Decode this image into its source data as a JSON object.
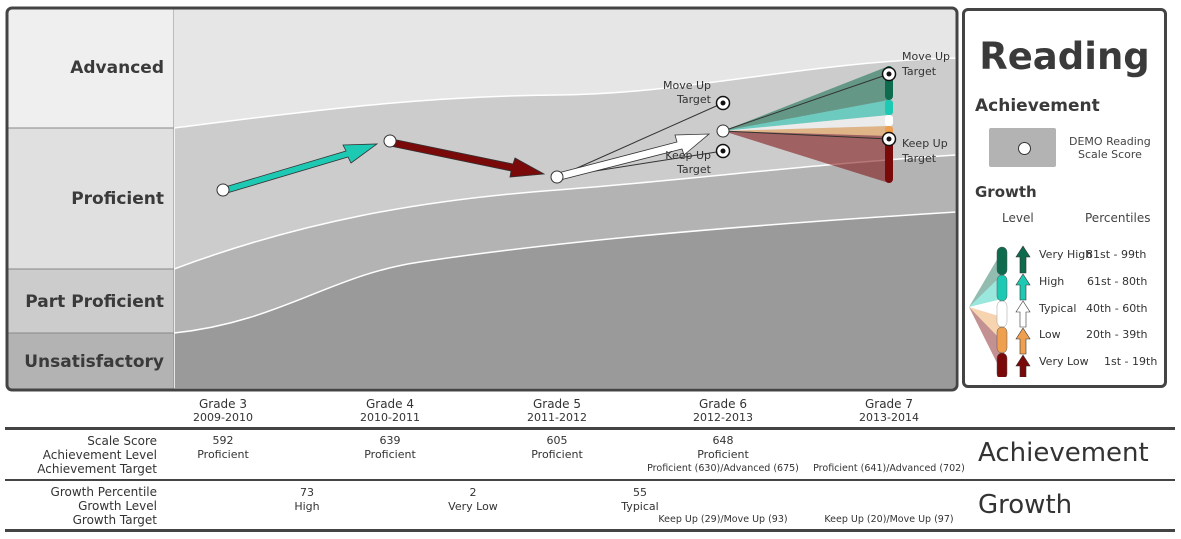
{
  "subject": "Reading",
  "levels": [
    "Advanced",
    "Proficient",
    "Part Proficient",
    "Unsatisfactory"
  ],
  "legend": {
    "achievement_title": "Achievement",
    "scale_score_label_1": "DEMO Reading",
    "scale_score_label_2": "Scale Score",
    "growth_title": "Growth",
    "level_header": "Level",
    "percentiles_header": "Percentiles",
    "rows": [
      {
        "level": "Very High",
        "percentiles": "81st  - 99th",
        "color": "#0e6b4d"
      },
      {
        "level": "High",
        "percentiles": "61st - 80th",
        "color": "#1ec9b4"
      },
      {
        "level": "Typical",
        "percentiles": "40th - 60th",
        "color": "#ffffff"
      },
      {
        "level": "Low",
        "percentiles": "20th - 39th",
        "color": "#eea04f"
      },
      {
        "level": "Very Low",
        "percentiles": "1st - 19th",
        "color": "#7a0a0a"
      }
    ]
  },
  "grades": [
    {
      "grade": "Grade 3",
      "year": "2009-2010"
    },
    {
      "grade": "Grade 4",
      "year": "2010-2011"
    },
    {
      "grade": "Grade 5",
      "year": "2011-2012"
    },
    {
      "grade": "Grade 6",
      "year": "2012-2013"
    },
    {
      "grade": "Grade 7",
      "year": "2013-2014"
    }
  ],
  "targets": {
    "move_up_6": [
      "Move Up",
      "Target"
    ],
    "keep_up_6": [
      "Keep Up",
      "Target"
    ],
    "move_up_7": [
      "Move Up",
      "Target"
    ],
    "keep_up_7": [
      "Keep Up",
      "Target"
    ]
  },
  "table": {
    "achievement_title": "Achievement",
    "growth_title": "Growth",
    "labels": {
      "scale_score": "Scale Score",
      "achievement_level": "Achievement Level",
      "achievement_target": "Achievement Target",
      "growth_percentile": "Growth Percentile",
      "growth_level": "Growth Level",
      "growth_target": "Growth Target"
    },
    "scale_scores": [
      "592",
      "639",
      "605",
      "648"
    ],
    "achievement_levels": [
      "Proficient",
      "Proficient",
      "Proficient",
      "Proficient"
    ],
    "achievement_targets": [
      "Proficient (630)/Advanced (675)",
      "Proficient (641)/Advanced (702)"
    ],
    "growth_percentiles": [
      "73",
      "2",
      "55"
    ],
    "growth_levels": [
      "High",
      "Very Low",
      "Typical"
    ],
    "growth_targets": [
      "Keep Up (29)/Move Up (93)",
      "Keep Up (20)/Move Up (97)"
    ]
  },
  "chart_data": {
    "type": "line",
    "categories": [
      "Grade 3",
      "Grade 4",
      "Grade 5",
      "Grade 6",
      "Grade 7"
    ],
    "series": [
      {
        "values": [
          592,
          639,
          605,
          648,
          null
        ]
      }
    ],
    "growth_percentiles": [
      73,
      2,
      55
    ],
    "growth_levels": [
      "High",
      "Very Low",
      "Typical"
    ],
    "bands": [
      "Advanced",
      "Proficient",
      "Part Proficient",
      "Unsatisfactory"
    ],
    "colors": {
      "advanced": "#e6e6e6",
      "proficient": "#cccccc",
      "part_proficient": "#b3b3b3",
      "unsatisfactory": "#9a9a9a",
      "very_high": "#0e6b4d",
      "high": "#1ec9b4",
      "typical": "#ffffff",
      "low": "#eea04f",
      "very_low": "#7a0a0a"
    }
  }
}
